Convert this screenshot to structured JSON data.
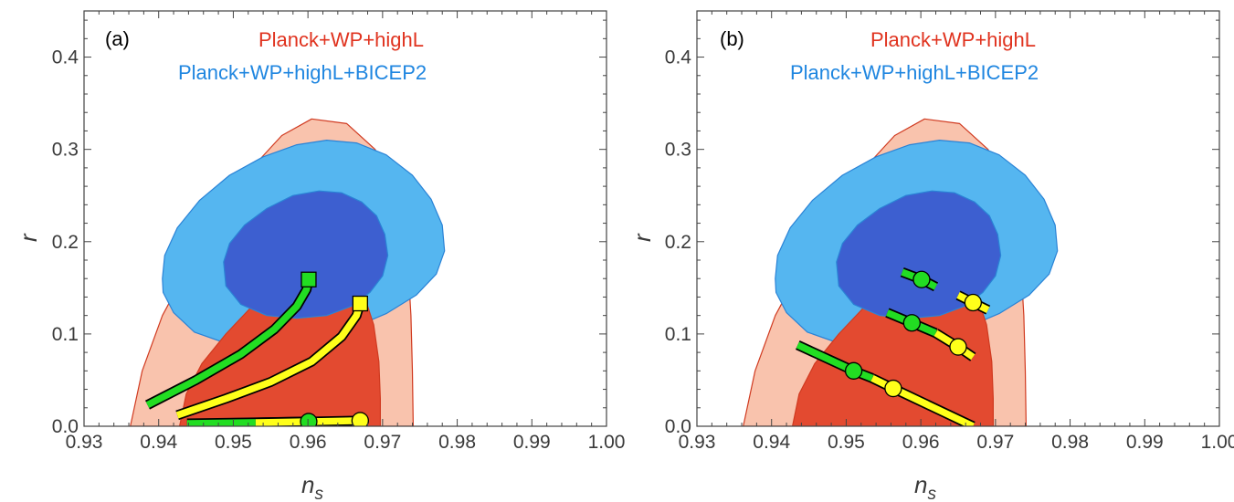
{
  "colors": {
    "planck_outer_fill": "#f9c3ad",
    "planck_inner_fill": "#e34a30",
    "planck_edge": "#d03a20",
    "bicep_outer_fill": "#55b6f0",
    "bicep_inner_fill": "#3d5fd0",
    "bicep_edge": "#2a83d6",
    "green": "#22dd22",
    "yellow": "#ffff1a",
    "marker_edge": "#000000",
    "legend_planck": "#e0331f",
    "legend_bicep": "#1f86e0"
  },
  "chart_data": [
    {
      "type": "scatter",
      "panel_label": "(a)",
      "xlabel": "n",
      "xlabel_sub": "s",
      "ylabel": "r",
      "xlim": [
        0.93,
        1.0
      ],
      "ylim": [
        0.0,
        0.45
      ],
      "x_ticks": [
        "0.93",
        "0.94",
        "0.95",
        "0.96",
        "0.97",
        "0.98",
        "0.99",
        "1.00"
      ],
      "y_ticks": [
        "0.0",
        "0.1",
        "0.2",
        "0.3",
        "0.4"
      ],
      "legend": [
        {
          "label": "Planck+WP+highL",
          "color": "legend_planck"
        },
        {
          "label": "Planck+WP+highL+BICEP2",
          "color": "legend_bicep"
        }
      ],
      "contours": [
        {
          "name": "Planck outer",
          "fill": "planck_outer_fill",
          "edge": "planck_edge",
          "points": [
            [
              0.9362,
              0.0
            ],
            [
              0.9378,
              0.06
            ],
            [
              0.9405,
              0.12
            ],
            [
              0.9445,
              0.18
            ],
            [
              0.9485,
              0.235
            ],
            [
              0.9525,
              0.28
            ],
            [
              0.9565,
              0.315
            ],
            [
              0.9605,
              0.333
            ],
            [
              0.9652,
              0.328
            ],
            [
              0.969,
              0.3
            ],
            [
              0.9718,
              0.255
            ],
            [
              0.9733,
              0.19
            ],
            [
              0.9738,
              0.12
            ],
            [
              0.974,
              0.06
            ],
            [
              0.9741,
              0.0
            ]
          ]
        },
        {
          "name": "BICEP2 outer",
          "fill": "bicep_outer_fill",
          "edge": "bicep_edge",
          "points": [
            [
              0.9405,
              0.16
            ],
            [
              0.9408,
              0.185
            ],
            [
              0.9425,
              0.215
            ],
            [
              0.9455,
              0.245
            ],
            [
              0.9495,
              0.272
            ],
            [
              0.954,
              0.292
            ],
            [
              0.9585,
              0.305
            ],
            [
              0.9625,
              0.31
            ],
            [
              0.9665,
              0.307
            ],
            [
              0.9705,
              0.294
            ],
            [
              0.974,
              0.272
            ],
            [
              0.9765,
              0.246
            ],
            [
              0.978,
              0.218
            ],
            [
              0.9783,
              0.19
            ],
            [
              0.9772,
              0.165
            ],
            [
              0.9745,
              0.142
            ],
            [
              0.9705,
              0.122
            ],
            [
              0.9655,
              0.105
            ],
            [
              0.96,
              0.094
            ],
            [
              0.954,
              0.088
            ],
            [
              0.949,
              0.09
            ],
            [
              0.9448,
              0.102
            ],
            [
              0.942,
              0.123
            ],
            [
              0.9406,
              0.145
            ]
          ]
        },
        {
          "name": "Planck inner",
          "fill": "planck_inner_fill",
          "edge": "planck_edge",
          "points": [
            [
              0.9428,
              0.0
            ],
            [
              0.9437,
              0.035
            ],
            [
              0.9458,
              0.068
            ],
            [
              0.949,
              0.1
            ],
            [
              0.9525,
              0.13
            ],
            [
              0.9553,
              0.16
            ],
            [
              0.9582,
              0.18
            ],
            [
              0.9608,
              0.187
            ],
            [
              0.9635,
              0.182
            ],
            [
              0.9658,
              0.165
            ],
            [
              0.9676,
              0.14
            ],
            [
              0.9688,
              0.11
            ],
            [
              0.9695,
              0.07
            ],
            [
              0.9697,
              0.03
            ],
            [
              0.9697,
              0.0
            ]
          ]
        },
        {
          "name": "BICEP2 inner",
          "fill": "bicep_inner_fill",
          "edge": "bicep_edge",
          "points": [
            [
              0.9487,
              0.178
            ],
            [
              0.9495,
              0.198
            ],
            [
              0.9515,
              0.218
            ],
            [
              0.9545,
              0.236
            ],
            [
              0.958,
              0.25
            ],
            [
              0.9615,
              0.255
            ],
            [
              0.9645,
              0.253
            ],
            [
              0.9672,
              0.243
            ],
            [
              0.9692,
              0.228
            ],
            [
              0.9703,
              0.208
            ],
            [
              0.9707,
              0.185
            ],
            [
              0.97,
              0.163
            ],
            [
              0.9683,
              0.145
            ],
            [
              0.9658,
              0.13
            ],
            [
              0.9625,
              0.12
            ],
            [
              0.9585,
              0.117
            ],
            [
              0.9545,
              0.12
            ],
            [
              0.951,
              0.132
            ],
            [
              0.949,
              0.152
            ]
          ]
        }
      ],
      "series": [
        {
          "name": "",
          "color": "green",
          "marker": "square",
          "marker_at": "end",
          "x": [
            0.9385,
            0.945,
            0.951,
            0.9555,
            0.9585,
            0.9598,
            0.9601
          ],
          "y": [
            0.023,
            0.05,
            0.078,
            0.105,
            0.13,
            0.148,
            0.159
          ]
        },
        {
          "name": "",
          "color": "yellow",
          "marker": "square",
          "marker_at": "end",
          "x": [
            0.9425,
            0.949,
            0.955,
            0.9605,
            0.9645,
            0.9665,
            0.967
          ],
          "y": [
            0.012,
            0.03,
            0.048,
            0.07,
            0.097,
            0.12,
            0.133
          ]
        },
        {
          "name": "",
          "color": "green",
          "marker": "circle",
          "marker_at": "end",
          "x": [
            0.9438,
            0.952,
            0.9601
          ],
          "y": [
            0.003,
            0.004,
            0.005
          ]
        },
        {
          "name": "",
          "color": "yellow",
          "marker": "circle",
          "marker_at": "end",
          "x": [
            0.953,
            0.961,
            0.967
          ],
          "y": [
            0.004,
            0.005,
            0.006
          ]
        }
      ]
    },
    {
      "type": "scatter",
      "panel_label": "(b)",
      "xlabel": "n",
      "xlabel_sub": "s",
      "ylabel": "r",
      "xlim": [
        0.93,
        1.0
      ],
      "ylim": [
        0.0,
        0.45
      ],
      "x_ticks": [
        "0.93",
        "0.94",
        "0.95",
        "0.96",
        "0.97",
        "0.98",
        "0.99",
        "1.00"
      ],
      "y_ticks": [
        "0.0",
        "0.1",
        "0.2",
        "0.3",
        "0.4"
      ],
      "legend": [
        {
          "label": "Planck+WP+highL",
          "color": "legend_planck"
        },
        {
          "label": "Planck+WP+highL+BICEP2",
          "color": "legend_bicep"
        }
      ],
      "contours": [
        {
          "name": "Planck outer",
          "fill": "planck_outer_fill",
          "edge": "planck_edge",
          "points": [
            [
              0.9362,
              0.0
            ],
            [
              0.9378,
              0.06
            ],
            [
              0.9405,
              0.12
            ],
            [
              0.9445,
              0.18
            ],
            [
              0.9485,
              0.235
            ],
            [
              0.9525,
              0.28
            ],
            [
              0.9565,
              0.315
            ],
            [
              0.9605,
              0.333
            ],
            [
              0.9652,
              0.328
            ],
            [
              0.969,
              0.3
            ],
            [
              0.9718,
              0.255
            ],
            [
              0.9733,
              0.19
            ],
            [
              0.9738,
              0.12
            ],
            [
              0.974,
              0.06
            ],
            [
              0.9741,
              0.0
            ]
          ]
        },
        {
          "name": "BICEP2 outer",
          "fill": "bicep_outer_fill",
          "edge": "bicep_edge",
          "points": [
            [
              0.9405,
              0.16
            ],
            [
              0.9408,
              0.185
            ],
            [
              0.9425,
              0.215
            ],
            [
              0.9455,
              0.245
            ],
            [
              0.9495,
              0.272
            ],
            [
              0.954,
              0.292
            ],
            [
              0.9585,
              0.305
            ],
            [
              0.9625,
              0.31
            ],
            [
              0.9665,
              0.307
            ],
            [
              0.9705,
              0.294
            ],
            [
              0.974,
              0.272
            ],
            [
              0.9765,
              0.246
            ],
            [
              0.978,
              0.218
            ],
            [
              0.9783,
              0.19
            ],
            [
              0.9772,
              0.165
            ],
            [
              0.9745,
              0.142
            ],
            [
              0.9705,
              0.122
            ],
            [
              0.9655,
              0.105
            ],
            [
              0.96,
              0.094
            ],
            [
              0.954,
              0.088
            ],
            [
              0.949,
              0.09
            ],
            [
              0.9448,
              0.102
            ],
            [
              0.942,
              0.123
            ],
            [
              0.9406,
              0.145
            ]
          ]
        },
        {
          "name": "Planck inner",
          "fill": "planck_inner_fill",
          "edge": "planck_edge",
          "points": [
            [
              0.9428,
              0.0
            ],
            [
              0.9437,
              0.035
            ],
            [
              0.9458,
              0.068
            ],
            [
              0.949,
              0.1
            ],
            [
              0.9525,
              0.13
            ],
            [
              0.9553,
              0.16
            ],
            [
              0.9582,
              0.18
            ],
            [
              0.9608,
              0.187
            ],
            [
              0.9635,
              0.182
            ],
            [
              0.9658,
              0.165
            ],
            [
              0.9676,
              0.14
            ],
            [
              0.9688,
              0.11
            ],
            [
              0.9695,
              0.07
            ],
            [
              0.9697,
              0.03
            ],
            [
              0.9697,
              0.0
            ]
          ]
        },
        {
          "name": "BICEP2 inner",
          "fill": "bicep_inner_fill",
          "edge": "bicep_edge",
          "points": [
            [
              0.9487,
              0.178
            ],
            [
              0.9495,
              0.198
            ],
            [
              0.9515,
              0.218
            ],
            [
              0.9545,
              0.236
            ],
            [
              0.958,
              0.25
            ],
            [
              0.9615,
              0.255
            ],
            [
              0.9645,
              0.253
            ],
            [
              0.9672,
              0.243
            ],
            [
              0.9692,
              0.228
            ],
            [
              0.9703,
              0.208
            ],
            [
              0.9707,
              0.185
            ],
            [
              0.97,
              0.163
            ],
            [
              0.9683,
              0.145
            ],
            [
              0.9658,
              0.13
            ],
            [
              0.9625,
              0.12
            ],
            [
              0.9585,
              0.117
            ],
            [
              0.9545,
              0.12
            ],
            [
              0.951,
              0.132
            ],
            [
              0.949,
              0.152
            ]
          ]
        }
      ],
      "segments": [
        {
          "x": [
            0.9575,
            0.9601
          ],
          "y": [
            0.167,
            0.159
          ],
          "color": "green"
        },
        {
          "x": [
            0.9601,
            0.962
          ],
          "y": [
            0.159,
            0.151
          ],
          "color": "green"
        },
        {
          "x": [
            0.965,
            0.967
          ],
          "y": [
            0.142,
            0.134
          ],
          "color": "yellow"
        },
        {
          "x": [
            0.967,
            0.969
          ],
          "y": [
            0.134,
            0.126
          ],
          "color": "yellow"
        },
        {
          "x": [
            0.9555,
            0.9588
          ],
          "y": [
            0.123,
            0.112
          ],
          "color": "green"
        },
        {
          "x": [
            0.9588,
            0.962
          ],
          "y": [
            0.112,
            0.101
          ],
          "color": "green"
        },
        {
          "x": [
            0.962,
            0.965
          ],
          "y": [
            0.101,
            0.086
          ],
          "color": "yellow"
        },
        {
          "x": [
            0.965,
            0.967
          ],
          "y": [
            0.086,
            0.075
          ],
          "color": "yellow"
        },
        {
          "x": [
            0.9435,
            0.951
          ],
          "y": [
            0.088,
            0.06
          ],
          "color": "green"
        },
        {
          "x": [
            0.951,
            0.9535
          ],
          "y": [
            0.06,
            0.052
          ],
          "color": "green"
        },
        {
          "x": [
            0.9535,
            0.9563,
            0.967
          ],
          "y": [
            0.052,
            0.041,
            0.0
          ],
          "color": "yellow"
        }
      ],
      "points": [
        {
          "x": 0.9601,
          "y": 0.159,
          "color": "green"
        },
        {
          "x": 0.967,
          "y": 0.134,
          "color": "yellow"
        },
        {
          "x": 0.9588,
          "y": 0.112,
          "color": "green"
        },
        {
          "x": 0.965,
          "y": 0.086,
          "color": "yellow"
        },
        {
          "x": 0.951,
          "y": 0.06,
          "color": "green"
        },
        {
          "x": 0.9563,
          "y": 0.041,
          "color": "yellow"
        }
      ]
    }
  ]
}
